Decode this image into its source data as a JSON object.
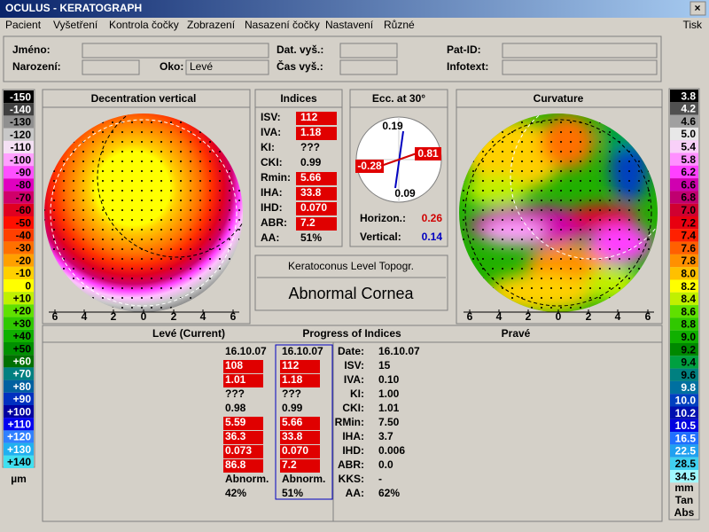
{
  "window": {
    "title": "OCULUS - KERATOGRAPH",
    "close": "×"
  },
  "menu": {
    "items": [
      "Pacient",
      "Vyšetření",
      "Kontrola čočky",
      "Zobrazení",
      "Nasazení čočky",
      "Nastavení",
      "Různé"
    ],
    "right": "Tisk"
  },
  "patient": {
    "name_label": "Jméno:",
    "birth_label": "Narození:",
    "eye_label": "Oko:",
    "eye_value": "Levé",
    "exam_date_label": "Dat. vyš.:",
    "exam_time_label": "Čas vyš.:",
    "pat_id_label": "Pat-ID:",
    "infotext_label": "Infotext:"
  },
  "height_scale": {
    "items": [
      {
        "label": "-150",
        "color": "#000000",
        "text": "#ffffff"
      },
      {
        "label": "-140",
        "color": "#404040",
        "text": "#ffffff"
      },
      {
        "label": "-130",
        "color": "#909090",
        "text": "#000000"
      },
      {
        "label": "-120",
        "color": "#c8c8c8",
        "text": "#000000"
      },
      {
        "label": "-110",
        "color": "#f4e0f4",
        "text": "#000000"
      },
      {
        "label": "-100",
        "color": "#ffa0ff",
        "text": "#000000"
      },
      {
        "label": "-90",
        "color": "#ff50ff",
        "text": "#000000"
      },
      {
        "label": "-80",
        "color": "#e000c0",
        "text": "#000000"
      },
      {
        "label": "-70",
        "color": "#d0006a",
        "text": "#000000"
      },
      {
        "label": "-60",
        "color": "#e00020",
        "text": "#000000"
      },
      {
        "label": "-50",
        "color": "#ff1000",
        "text": "#000000"
      },
      {
        "label": "-40",
        "color": "#ff4000",
        "text": "#000000"
      },
      {
        "label": "-30",
        "color": "#ff7000",
        "text": "#000000"
      },
      {
        "label": "-20",
        "color": "#ffa000",
        "text": "#000000"
      },
      {
        "label": "-10",
        "color": "#ffd000",
        "text": "#000000"
      },
      {
        "label": "0",
        "color": "#ffff00",
        "text": "#000000"
      },
      {
        "label": "+10",
        "color": "#c0f000",
        "text": "#000000"
      },
      {
        "label": "+20",
        "color": "#60e000",
        "text": "#000000"
      },
      {
        "label": "+30",
        "color": "#30c800",
        "text": "#000000"
      },
      {
        "label": "+40",
        "color": "#10b000",
        "text": "#000000"
      },
      {
        "label": "+50",
        "color": "#009000",
        "text": "#000000"
      },
      {
        "label": "+60",
        "color": "#007000",
        "text": "#ffffff"
      },
      {
        "label": "+70",
        "color": "#008080",
        "text": "#ffffff"
      },
      {
        "label": "+80",
        "color": "#0060a0",
        "text": "#ffffff"
      },
      {
        "label": "+90",
        "color": "#0030c0",
        "text": "#ffffff"
      },
      {
        "label": "+100",
        "color": "#0000a0",
        "text": "#ffffff"
      },
      {
        "label": "+110",
        "color": "#0000f0",
        "text": "#ffffff"
      },
      {
        "label": "+120",
        "color": "#3080ff",
        "text": "#ffffff"
      },
      {
        "label": "+130",
        "color": "#20b0f0",
        "text": "#ffffff"
      },
      {
        "label": "+140",
        "color": "#40e0f0",
        "text": "#000000"
      }
    ],
    "unit": "µm"
  },
  "curvature_scale": {
    "items": [
      {
        "label": "3.8",
        "color": "#000000",
        "text": "#ffffff"
      },
      {
        "label": "4.2",
        "color": "#505050",
        "text": "#ffffff"
      },
      {
        "label": "4.6",
        "color": "#a0a0a0",
        "text": "#000000"
      },
      {
        "label": "5.0",
        "color": "#e8e8e8",
        "text": "#000000"
      },
      {
        "label": "5.4",
        "color": "#f8d0f8",
        "text": "#000000"
      },
      {
        "label": "5.8",
        "color": "#ff90ff",
        "text": "#000000"
      },
      {
        "label": "6.2",
        "color": "#ff40ff",
        "text": "#000000"
      },
      {
        "label": "6.6",
        "color": "#d000b0",
        "text": "#000000"
      },
      {
        "label": "6.8",
        "color": "#c00070",
        "text": "#000000"
      },
      {
        "label": "7.0",
        "color": "#d00030",
        "text": "#000000"
      },
      {
        "label": "7.2",
        "color": "#e80010",
        "text": "#000000"
      },
      {
        "label": "7.4",
        "color": "#ff2000",
        "text": "#000000"
      },
      {
        "label": "7.6",
        "color": "#ff6000",
        "text": "#000000"
      },
      {
        "label": "7.8",
        "color": "#ff9000",
        "text": "#000000"
      },
      {
        "label": "8.0",
        "color": "#ffc000",
        "text": "#000000"
      },
      {
        "label": "8.2",
        "color": "#ffff00",
        "text": "#000000"
      },
      {
        "label": "8.4",
        "color": "#c0f000",
        "text": "#000000"
      },
      {
        "label": "8.6",
        "color": "#60e000",
        "text": "#000000"
      },
      {
        "label": "8.8",
        "color": "#30c800",
        "text": "#000000"
      },
      {
        "label": "9.0",
        "color": "#10b000",
        "text": "#000000"
      },
      {
        "label": "9.2",
        "color": "#008800",
        "text": "#000000"
      },
      {
        "label": "9.4",
        "color": "#00a040",
        "text": "#000000"
      },
      {
        "label": "9.6",
        "color": "#008080",
        "text": "#000000"
      },
      {
        "label": "9.8",
        "color": "#0070a0",
        "text": "#ffffff"
      },
      {
        "label": "10.0",
        "color": "#0040c0",
        "text": "#ffffff"
      },
      {
        "label": "10.2",
        "color": "#0010b0",
        "text": "#ffffff"
      },
      {
        "label": "10.5",
        "color": "#0000e0",
        "text": "#ffffff"
      },
      {
        "label": "16.5",
        "color": "#2070ff",
        "text": "#ffffff"
      },
      {
        "label": "22.5",
        "color": "#20a0f0",
        "text": "#ffffff"
      },
      {
        "label": "28.5",
        "color": "#40d0f0",
        "text": "#000000"
      },
      {
        "label": "34.5",
        "color": "#a0f8ff",
        "text": "#000000"
      }
    ],
    "units": [
      "mm",
      "Tan",
      "Abs"
    ]
  },
  "decentration": {
    "title": "Decentration vertical",
    "axis": [
      "6",
      "4",
      "2",
      "0",
      "2",
      "4",
      "6"
    ]
  },
  "indices": {
    "title": "Indices",
    "rows": [
      {
        "label": "ISV:",
        "value": "112",
        "flag": true
      },
      {
        "label": "IVA:",
        "value": "1.18",
        "flag": true
      },
      {
        "label": "KI:",
        "value": "???",
        "flag": false
      },
      {
        "label": "CKI:",
        "value": "0.99",
        "flag": false
      },
      {
        "label": "Rmin:",
        "value": "5.66",
        "flag": true
      },
      {
        "label": "IHA:",
        "value": "33.8",
        "flag": true
      },
      {
        "label": "IHD:",
        "value": "0.070",
        "flag": true
      },
      {
        "label": "ABR:",
        "value": "7.2",
        "flag": true
      },
      {
        "label": "AA:",
        "value": "51%",
        "flag": false
      }
    ]
  },
  "eccentricity": {
    "title": "Ecc. at 30°",
    "top": "0.19",
    "right": "0.81",
    "left": "-0.28",
    "bottom": "0.09",
    "horizontal_label": "Horizon.:",
    "horizontal": "0.26",
    "vertical_label": "Vertical:",
    "vertical": "0.14"
  },
  "keratoconus": {
    "title": "Keratoconus Level Topogr.",
    "result": "Abnormal Cornea"
  },
  "curvature": {
    "title": "Curvature",
    "axis": [
      "6",
      "4",
      "2",
      "0",
      "2",
      "4",
      "6"
    ]
  },
  "progress": {
    "left_header": "Levé (Current)",
    "title": "Progress of Indices",
    "right_header": "Pravé",
    "previous": [
      {
        "text": "16.10.07",
        "flag": false
      },
      {
        "text": "108",
        "flag": true
      },
      {
        "text": "1.01",
        "flag": true
      },
      {
        "text": "???",
        "flag": false
      },
      {
        "text": "0.98",
        "flag": false
      },
      {
        "text": "5.59",
        "flag": true
      },
      {
        "text": "36.3",
        "flag": true
      },
      {
        "text": "0.073",
        "flag": true
      },
      {
        "text": "86.8",
        "flag": true
      },
      {
        "text": "Abnorm.",
        "flag": false
      },
      {
        "text": "42%",
        "flag": false
      }
    ],
    "current": [
      {
        "text": "16.10.07",
        "flag": false
      },
      {
        "text": "112",
        "flag": true
      },
      {
        "text": "1.18",
        "flag": true
      },
      {
        "text": "???",
        "flag": false
      },
      {
        "text": "0.99",
        "flag": false
      },
      {
        "text": "5.66",
        "flag": true
      },
      {
        "text": "33.8",
        "flag": true
      },
      {
        "text": "0.070",
        "flag": true
      },
      {
        "text": "7.2",
        "flag": true
      },
      {
        "text": "Abnorm.",
        "flag": false
      },
      {
        "text": "51%",
        "flag": false
      }
    ],
    "labels": [
      "Date:",
      "ISV:",
      "IVA:",
      "KI:",
      "CKI:",
      "RMin:",
      "IHA:",
      "IHD:",
      "ABR:",
      "KKS:",
      "AA:"
    ],
    "right_eye": [
      "16.10.07",
      "15",
      "0.10",
      "1.00",
      "1.01",
      "7.50",
      "3.7",
      "0.006",
      "0.0",
      "-",
      "62%"
    ]
  }
}
